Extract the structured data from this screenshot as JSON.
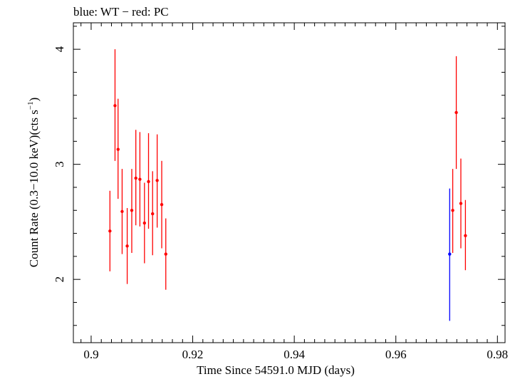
{
  "chart_data": {
    "type": "scatter",
    "title": "blue: WT − red: PC",
    "xlabel": "Time Since 54591.0 MJD (days)",
    "ylabel_main": "Count Rate (0.3−10.0 keV)(cts s",
    "ylabel_sup": "−1",
    "ylabel_close": ")",
    "xlim": [
      0.8965,
      0.9815
    ],
    "ylim": [
      1.45,
      4.23
    ],
    "x_ticks": [
      {
        "value": 0.9,
        "label": "0.9"
      },
      {
        "value": 0.92,
        "label": "0.92"
      },
      {
        "value": 0.94,
        "label": "0.94"
      },
      {
        "value": 0.96,
        "label": "0.96"
      },
      {
        "value": 0.98,
        "label": "0.98"
      }
    ],
    "y_ticks": [
      {
        "value": 2,
        "label": "2"
      },
      {
        "value": 3,
        "label": "3"
      },
      {
        "value": 4,
        "label": "4"
      }
    ],
    "series": [
      {
        "name": "WT",
        "color": "#0000ff",
        "points": [
          {
            "x": 0.9706,
            "y": 2.22,
            "ylo": 1.64,
            "yhi": 2.79
          }
        ]
      },
      {
        "name": "PC",
        "color": "#ff0000",
        "points": [
          {
            "x": 0.9037,
            "y": 2.42,
            "ylo": 2.07,
            "yhi": 2.77
          },
          {
            "x": 0.9047,
            "y": 3.51,
            "ylo": 3.03,
            "yhi": 4.0
          },
          {
            "x": 0.9053,
            "y": 3.13,
            "ylo": 2.7,
            "yhi": 3.57
          },
          {
            "x": 0.9061,
            "y": 2.59,
            "ylo": 2.22,
            "yhi": 2.96
          },
          {
            "x": 0.9071,
            "y": 2.29,
            "ylo": 1.96,
            "yhi": 2.62
          },
          {
            "x": 0.908,
            "y": 2.6,
            "ylo": 2.23,
            "yhi": 2.96
          },
          {
            "x": 0.9088,
            "y": 2.88,
            "ylo": 2.47,
            "yhi": 3.3
          },
          {
            "x": 0.9096,
            "y": 2.87,
            "ylo": 2.46,
            "yhi": 3.28
          },
          {
            "x": 0.9105,
            "y": 2.49,
            "ylo": 2.14,
            "yhi": 2.84
          },
          {
            "x": 0.9113,
            "y": 2.85,
            "ylo": 2.44,
            "yhi": 3.27
          },
          {
            "x": 0.9121,
            "y": 2.57,
            "ylo": 2.21,
            "yhi": 2.94
          },
          {
            "x": 0.913,
            "y": 2.86,
            "ylo": 2.45,
            "yhi": 3.26
          },
          {
            "x": 0.9139,
            "y": 2.65,
            "ylo": 2.27,
            "yhi": 3.03
          },
          {
            "x": 0.9147,
            "y": 2.22,
            "ylo": 1.91,
            "yhi": 2.53
          },
          {
            "x": 0.9712,
            "y": 2.6,
            "ylo": 2.23,
            "yhi": 2.96
          },
          {
            "x": 0.9719,
            "y": 3.45,
            "ylo": 2.96,
            "yhi": 3.94
          },
          {
            "x": 0.9728,
            "y": 2.66,
            "ylo": 2.27,
            "yhi": 3.05
          },
          {
            "x": 0.9737,
            "y": 2.38,
            "ylo": 2.08,
            "yhi": 2.69
          }
        ]
      }
    ]
  }
}
